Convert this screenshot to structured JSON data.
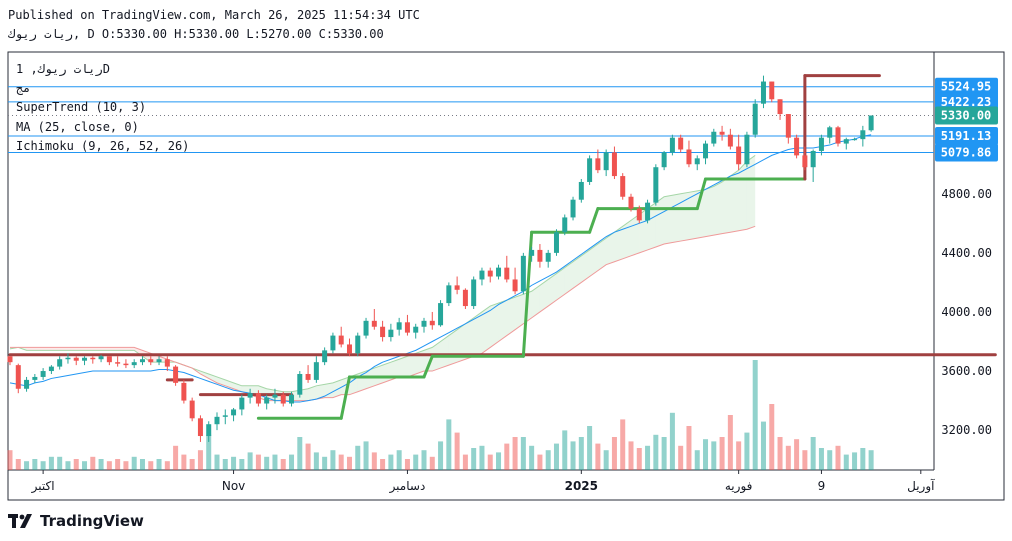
{
  "header": {
    "published": "Published on TradingView.com, March 26, 2025 11:54:34 UTC",
    "symbol_line": "ريات ريوك, D O:5330.00 H:5330.00 L:5270.00 C:5330.00"
  },
  "legend": {
    "symbol": "ريات ريوك, 1D",
    "extra": "مج",
    "supertrend": "SuperTrend (10, 3)",
    "ma": "MA (25, close, 0)",
    "ichimoku": "Ichimoku (9, 26, 52, 26)"
  },
  "footer": {
    "brand": "TradingView"
  },
  "colors": {
    "up": "#26a69a",
    "down": "#ef5350",
    "st_up": "#4caf50",
    "st_down": "#a04040",
    "ma": "#2196f3",
    "hline": "#2196f3"
  },
  "chart_data": {
    "type": "candlestick",
    "title": "ريات ريوك, 1D",
    "ylim": [
      2930,
      5760
    ],
    "y_ticks": [
      3200,
      3600,
      4000,
      4400,
      4800
    ],
    "y_tick_labels": [
      "3200.00",
      "3600.00",
      "4000.00",
      "4400.00",
      "4800.00"
    ],
    "price_labels": [
      {
        "value": 5524.95,
        "label": "5524.95",
        "color": "#2196f3"
      },
      {
        "value": 5422.23,
        "label": "5422.23",
        "color": "#2196f3"
      },
      {
        "value": 5330.0,
        "label": "5330.00",
        "color": "#26a69a"
      },
      {
        "value": 5191.13,
        "label": "5191.13",
        "color": "#2196f3"
      },
      {
        "value": 5079.86,
        "label": "5079.86",
        "color": "#2196f3"
      }
    ],
    "x_labels": [
      {
        "label": "اكتبر",
        "bar": 4
      },
      {
        "label": "Nov",
        "bar": 27
      },
      {
        "label": "دسامبر",
        "bar": 48
      },
      {
        "label": "2025",
        "bar": 69
      },
      {
        "label": "فوريه",
        "bar": 88
      },
      {
        "label": "9",
        "bar": 98
      },
      {
        "label": "آوریل",
        "bar": 110
      }
    ],
    "candles": [
      [
        3700,
        3700,
        3640,
        3660
      ],
      [
        3640,
        3650,
        3450,
        3480
      ],
      [
        3480,
        3560,
        3460,
        3540
      ],
      [
        3540,
        3580,
        3520,
        3560
      ],
      [
        3560,
        3620,
        3540,
        3600
      ],
      [
        3600,
        3640,
        3580,
        3630
      ],
      [
        3630,
        3700,
        3610,
        3680
      ],
      [
        3680,
        3720,
        3650,
        3690
      ],
      [
        3690,
        3700,
        3640,
        3670
      ],
      [
        3670,
        3700,
        3640,
        3690
      ],
      [
        3690,
        3700,
        3650,
        3680
      ],
      [
        3680,
        3710,
        3660,
        3700
      ],
      [
        3700,
        3700,
        3640,
        3660
      ],
      [
        3660,
        3700,
        3630,
        3650
      ],
      [
        3650,
        3680,
        3620,
        3640
      ],
      [
        3640,
        3680,
        3620,
        3660
      ],
      [
        3660,
        3700,
        3640,
        3680
      ],
      [
        3680,
        3700,
        3640,
        3660
      ],
      [
        3660,
        3700,
        3640,
        3680
      ],
      [
        3680,
        3700,
        3600,
        3630
      ],
      [
        3630,
        3640,
        3500,
        3520
      ],
      [
        3520,
        3540,
        3380,
        3400
      ],
      [
        3400,
        3420,
        3260,
        3280
      ],
      [
        3280,
        3300,
        3120,
        3160
      ],
      [
        3160,
        3260,
        3120,
        3240
      ],
      [
        3240,
        3320,
        3200,
        3290
      ],
      [
        3290,
        3340,
        3240,
        3300
      ],
      [
        3300,
        3350,
        3260,
        3340
      ],
      [
        3340,
        3440,
        3300,
        3420
      ],
      [
        3420,
        3480,
        3380,
        3450
      ],
      [
        3450,
        3470,
        3360,
        3380
      ],
      [
        3380,
        3440,
        3340,
        3420
      ],
      [
        3420,
        3480,
        3380,
        3440
      ],
      [
        3440,
        3460,
        3360,
        3380
      ],
      [
        3380,
        3460,
        3360,
        3440
      ],
      [
        3440,
        3600,
        3420,
        3580
      ],
      [
        3580,
        3640,
        3520,
        3540
      ],
      [
        3540,
        3700,
        3520,
        3660
      ],
      [
        3660,
        3760,
        3640,
        3740
      ],
      [
        3740,
        3860,
        3720,
        3840
      ],
      [
        3840,
        3900,
        3760,
        3780
      ],
      [
        3780,
        3820,
        3700,
        3720
      ],
      [
        3720,
        3860,
        3700,
        3840
      ],
      [
        3840,
        3960,
        3820,
        3940
      ],
      [
        3940,
        4020,
        3880,
        3900
      ],
      [
        3900,
        3940,
        3800,
        3830
      ],
      [
        3830,
        3920,
        3800,
        3880
      ],
      [
        3880,
        3960,
        3840,
        3930
      ],
      [
        3930,
        3980,
        3840,
        3860
      ],
      [
        3860,
        3920,
        3820,
        3900
      ],
      [
        3900,
        3960,
        3860,
        3940
      ],
      [
        3940,
        4000,
        3880,
        3910
      ],
      [
        3910,
        4080,
        3900,
        4060
      ],
      [
        4060,
        4200,
        4040,
        4180
      ],
      [
        4180,
        4240,
        4120,
        4150
      ],
      [
        4150,
        4160,
        4020,
        4040
      ],
      [
        4040,
        4240,
        4020,
        4220
      ],
      [
        4220,
        4300,
        4180,
        4280
      ],
      [
        4280,
        4300,
        4200,
        4240
      ],
      [
        4240,
        4320,
        4220,
        4300
      ],
      [
        4300,
        4380,
        4200,
        4220
      ],
      [
        4220,
        4300,
        4120,
        4140
      ],
      [
        4140,
        4400,
        4120,
        4380
      ],
      [
        4380,
        4440,
        4340,
        4420
      ],
      [
        4420,
        4460,
        4300,
        4340
      ],
      [
        4340,
        4420,
        4300,
        4400
      ],
      [
        4400,
        4560,
        4380,
        4540
      ],
      [
        4540,
        4660,
        4520,
        4640
      ],
      [
        4640,
        4780,
        4620,
        4760
      ],
      [
        4760,
        4900,
        4740,
        4880
      ],
      [
        4880,
        5060,
        4860,
        5040
      ],
      [
        5040,
        5100,
        4940,
        4960
      ],
      [
        4960,
        5100,
        4920,
        5080
      ],
      [
        5080,
        5120,
        4900,
        4920
      ],
      [
        4920,
        4940,
        4760,
        4780
      ],
      [
        4780,
        4800,
        4680,
        4700
      ],
      [
        4700,
        4720,
        4600,
        4620
      ],
      [
        4620,
        4760,
        4600,
        4740
      ],
      [
        4740,
        5000,
        4720,
        4980
      ],
      [
        4980,
        5090,
        4960,
        5080
      ],
      [
        5080,
        5200,
        5060,
        5180
      ],
      [
        5180,
        5200,
        5080,
        5100
      ],
      [
        5100,
        5160,
        4980,
        5000
      ],
      [
        5000,
        5060,
        4960,
        5040
      ],
      [
        5040,
        5160,
        5000,
        5140
      ],
      [
        5140,
        5240,
        5120,
        5220
      ],
      [
        5220,
        5260,
        5160,
        5200
      ],
      [
        5200,
        5240,
        5100,
        5120
      ],
      [
        5120,
        5200,
        4960,
        5000
      ],
      [
        5000,
        5220,
        4980,
        5200
      ],
      [
        5200,
        5440,
        5180,
        5410
      ],
      [
        5410,
        5600,
        5380,
        5560
      ],
      [
        5560,
        5560,
        5420,
        5440
      ],
      [
        5440,
        5440,
        5300,
        5340
      ],
      [
        5340,
        5340,
        5140,
        5180
      ],
      [
        5180,
        5200,
        5040,
        5060
      ],
      [
        5060,
        5120,
        4960,
        4980
      ],
      [
        4980,
        5100,
        4880,
        5090
      ],
      [
        5090,
        5200,
        5060,
        5180
      ],
      [
        5180,
        5260,
        5140,
        5250
      ],
      [
        5250,
        5260,
        5120,
        5140
      ],
      [
        5140,
        5180,
        5100,
        5170
      ],
      [
        5170,
        5180,
        5160,
        5170
      ],
      [
        5170,
        5260,
        5120,
        5230
      ],
      [
        5230,
        5330,
        5220,
        5330
      ]
    ],
    "volume": [
      18,
      10,
      8,
      10,
      8,
      12,
      12,
      8,
      10,
      8,
      12,
      10,
      8,
      10,
      8,
      12,
      10,
      8,
      10,
      8,
      22,
      14,
      10,
      18,
      32,
      14,
      10,
      12,
      10,
      16,
      14,
      12,
      14,
      10,
      14,
      30,
      24,
      16,
      12,
      18,
      14,
      12,
      22,
      26,
      16,
      10,
      14,
      18,
      10,
      14,
      18,
      12,
      26,
      46,
      34,
      14,
      20,
      22,
      14,
      16,
      24,
      30,
      30,
      22,
      14,
      18,
      24,
      36,
      26,
      30,
      40,
      24,
      18,
      30,
      46,
      26,
      20,
      22,
      32,
      30,
      52,
      22,
      40,
      18,
      28,
      26,
      30,
      50,
      26,
      34,
      100,
      44,
      60,
      30,
      22,
      28,
      18,
      30,
      20,
      18,
      22,
      14,
      16,
      20,
      18
    ],
    "supertrend": [
      [
        0,
        119,
        3710,
        "down"
      ],
      [
        19,
        22,
        3540,
        "down"
      ],
      [
        23,
        34,
        3440,
        "down"
      ],
      [
        30,
        40,
        3280,
        "up"
      ],
      [
        41,
        50,
        3560,
        "up"
      ],
      [
        51,
        62,
        3700,
        "up"
      ],
      [
        63,
        70,
        4540,
        "up"
      ],
      [
        71,
        83,
        4700,
        "up"
      ],
      [
        84,
        96,
        4900,
        "up"
      ],
      [
        96,
        105,
        5600,
        "down"
      ]
    ],
    "ma": [
      3520,
      3510,
      3500,
      3520,
      3530,
      3550,
      3560,
      3570,
      3580,
      3590,
      3600,
      3600,
      3600,
      3600,
      3600,
      3600,
      3600,
      3600,
      3610,
      3610,
      3600,
      3590,
      3570,
      3550,
      3530,
      3510,
      3490,
      3470,
      3460,
      3450,
      3440,
      3420,
      3400,
      3400,
      3390,
      3390,
      3400,
      3410,
      3430,
      3460,
      3490,
      3520,
      3560,
      3590,
      3630,
      3660,
      3680,
      3700,
      3720,
      3740,
      3770,
      3800,
      3830,
      3860,
      3890,
      3920,
      3950,
      3980,
      4010,
      4050,
      4080,
      4110,
      4140,
      4180,
      4210,
      4240,
      4270,
      4310,
      4350,
      4390,
      4430,
      4470,
      4510,
      4540,
      4560,
      4580,
      4600,
      4620,
      4650,
      4680,
      4710,
      4740,
      4770,
      4800,
      4830,
      4860,
      4890,
      4920,
      4940,
      4970,
      5000,
      5030,
      5060,
      5080,
      5100,
      5110,
      5110,
      5110,
      5120,
      5130,
      5150,
      5160,
      5170,
      5190,
      5200
    ],
    "cloud_a": [
      3750,
      3760,
      3740,
      3740,
      3740,
      3740,
      3740,
      3740,
      3740,
      3740,
      3740,
      3740,
      3740,
      3740,
      3740,
      3740,
      3700,
      3660,
      3660,
      3660,
      3660,
      3640,
      3620,
      3600,
      3580,
      3560,
      3540,
      3520,
      3500,
      3500,
      3500,
      3480,
      3470,
      3460,
      3460,
      3470,
      3480,
      3500,
      3510,
      3520,
      3540,
      3560,
      3580,
      3600,
      3620,
      3640,
      3660,
      3680,
      3700,
      3720,
      3740,
      3760,
      3800,
      3840,
      3880,
      3920,
      3960,
      4000,
      4040,
      4060,
      4080,
      4100,
      4120,
      4140,
      4180,
      4220,
      4260,
      4300,
      4340,
      4380,
      4420,
      4460,
      4500,
      4540,
      4580,
      4620,
      4660,
      4700,
      4740,
      4780,
      4790,
      4800,
      4810,
      4820,
      4830,
      4850,
      4880,
      4920,
      4960,
      5020,
      5060
    ],
    "cloud_b": [
      3760,
      3760,
      3760,
      3760,
      3760,
      3760,
      3760,
      3760,
      3760,
      3760,
      3760,
      3760,
      3760,
      3760,
      3760,
      3760,
      3740,
      3720,
      3700,
      3680,
      3660,
      3640,
      3620,
      3580,
      3550,
      3520,
      3500,
      3480,
      3460,
      3440,
      3420,
      3400,
      3400,
      3400,
      3400,
      3400,
      3400,
      3410,
      3420,
      3420,
      3440,
      3440,
      3460,
      3480,
      3500,
      3520,
      3540,
      3560,
      3560,
      3580,
      3600,
      3600,
      3620,
      3640,
      3660,
      3680,
      3700,
      3720,
      3760,
      3800,
      3840,
      3880,
      3920,
      3960,
      4000,
      4040,
      4080,
      4120,
      4160,
      4200,
      4240,
      4280,
      4320,
      4340,
      4360,
      4380,
      4400,
      4420,
      4440,
      4460,
      4470,
      4480,
      4490,
      4500,
      4510,
      4520,
      4530,
      4540,
      4550,
      4560,
      4580
    ]
  }
}
